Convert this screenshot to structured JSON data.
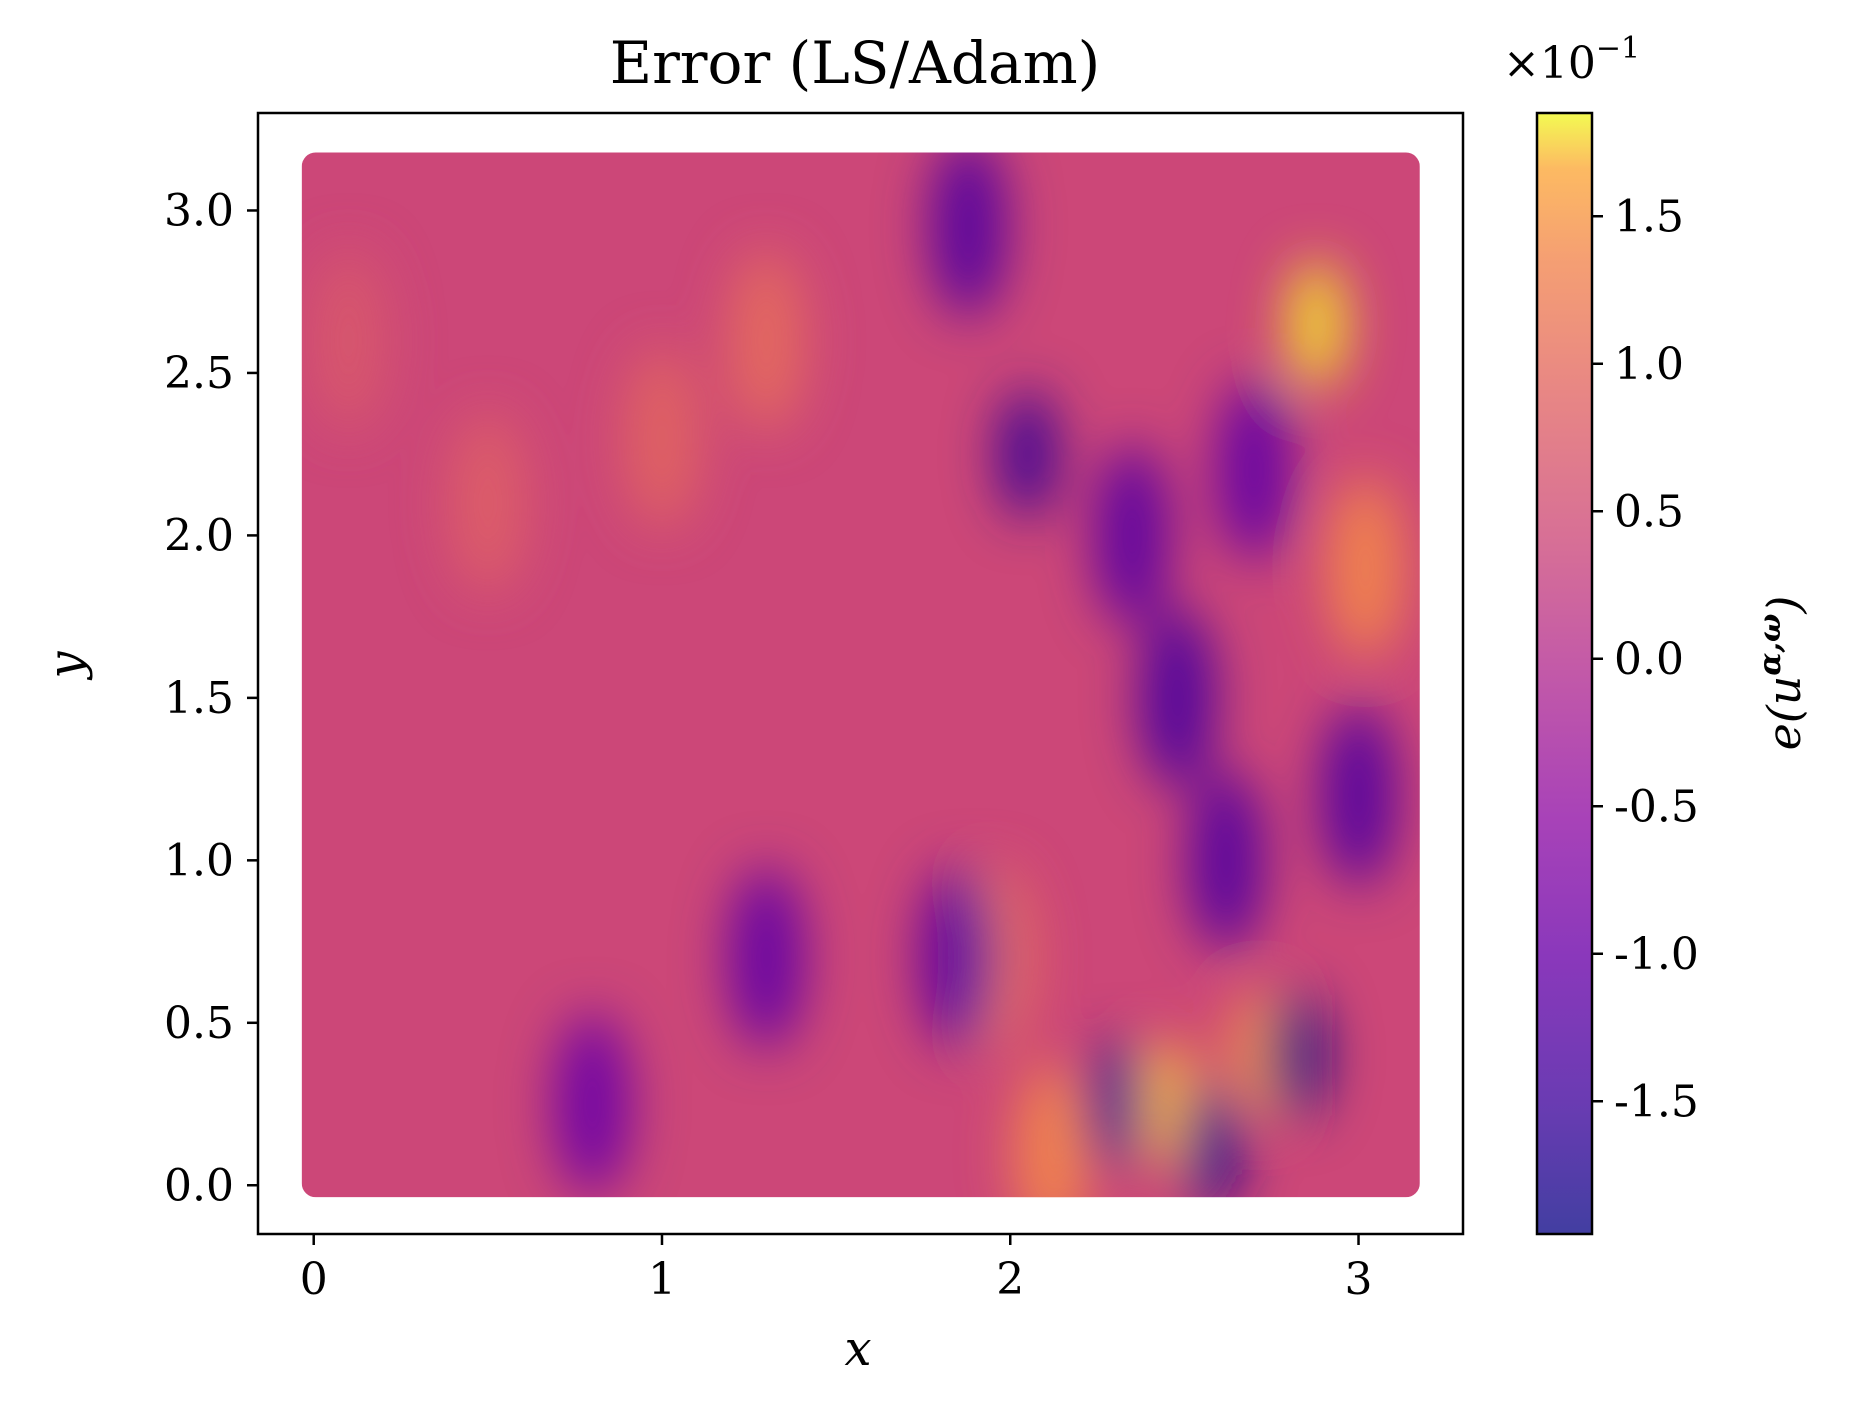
{
  "chart_data": {
    "type": "heatmap",
    "title": "Error (LS/Adam)",
    "xlabel": "x",
    "ylabel": "y",
    "xlim": [
      -0.16,
      3.3
    ],
    "ylim": [
      -0.15,
      3.3
    ],
    "xticks": [
      0,
      1,
      2,
      3
    ],
    "xtick_labels": [
      "0",
      "1",
      "2",
      "3"
    ],
    "yticks": [
      0.0,
      0.5,
      1.0,
      1.5,
      2.0,
      2.5,
      3.0
    ],
    "ytick_labels": [
      "0.0",
      "0.5",
      "1.0",
      "1.5",
      "2.0",
      "2.5",
      "3.0"
    ],
    "domain": {
      "x": [
        0,
        3.14159
      ],
      "y": [
        0,
        3.14159
      ]
    },
    "colormap": "plasma",
    "colorbar": {
      "label": "e(u^{α,ω})",
      "label_text": "e(u",
      "label_sup": "α,ω",
      "label_close": ")",
      "scale_text": "×10",
      "scale_exp": "−1",
      "range": [
        -1.95,
        1.85
      ],
      "ticks": [
        1.5,
        1.0,
        0.5,
        0.0,
        -0.5,
        -1.0,
        -1.5
      ],
      "tick_labels": [
        "1.5",
        "1.0",
        "0.5",
        "0.0",
        "-0.5",
        "-1.0",
        "-1.5"
      ]
    },
    "field_features": [
      {
        "x": 2.88,
        "y": 2.65,
        "value": 1.8
      },
      {
        "x": 2.45,
        "y": 0.25,
        "value": 1.7
      },
      {
        "x": 2.72,
        "y": 0.4,
        "value": 1.6
      },
      {
        "x": 2.12,
        "y": 0.1,
        "value": 1.4
      },
      {
        "x": 3.02,
        "y": 1.9,
        "value": 1.4
      },
      {
        "x": 1.95,
        "y": 0.7,
        "value": 1.2
      },
      {
        "x": 1.3,
        "y": 2.6,
        "value": 1.0
      },
      {
        "x": 1.0,
        "y": 2.3,
        "value": 0.9
      },
      {
        "x": 0.5,
        "y": 2.1,
        "value": 0.8
      },
      {
        "x": 0.1,
        "y": 2.6,
        "value": 0.7
      },
      {
        "x": 2.82,
        "y": 0.4,
        "value": -1.95
      },
      {
        "x": 2.58,
        "y": 0.12,
        "value": -1.8
      },
      {
        "x": 2.3,
        "y": 0.25,
        "value": -1.7
      },
      {
        "x": 2.05,
        "y": 2.25,
        "value": -1.6
      },
      {
        "x": 1.88,
        "y": 2.95,
        "value": -1.3
      },
      {
        "x": 2.48,
        "y": 1.5,
        "value": -1.4
      },
      {
        "x": 2.62,
        "y": 1.0,
        "value": -1.3
      },
      {
        "x": 3.0,
        "y": 1.2,
        "value": -1.3
      },
      {
        "x": 1.85,
        "y": 0.7,
        "value": -1.2
      },
      {
        "x": 1.3,
        "y": 0.7,
        "value": -1.1
      },
      {
        "x": 0.8,
        "y": 0.25,
        "value": -1.0
      },
      {
        "x": 2.35,
        "y": 2.0,
        "value": -1.2
      },
      {
        "x": 2.7,
        "y": 2.2,
        "value": -1.1
      }
    ]
  }
}
